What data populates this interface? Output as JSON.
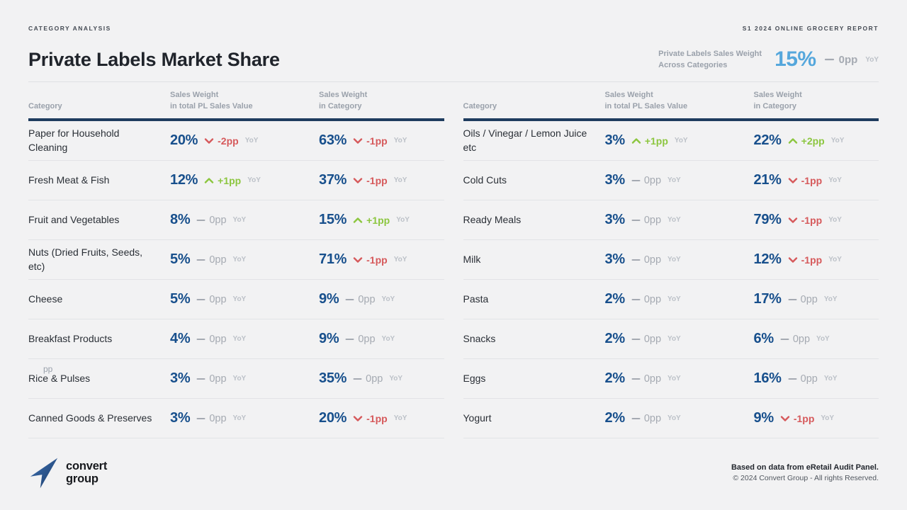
{
  "meta": {
    "left": "CATEGORY ANALYSIS",
    "right": "S1 2024 ONLINE GROCERY REPORT"
  },
  "header": {
    "title": "Private Labels Market Share",
    "kpi": {
      "label_line1": "Private Labels Sales Weight",
      "label_line2": "Across Categories",
      "value": "15%",
      "trend": "flat",
      "change": "0pp"
    }
  },
  "labels": {
    "yoy": "YoY"
  },
  "columns": {
    "category": "Category",
    "col2_line1": "Sales Weight",
    "col2_line2": "in total PL Sales Value",
    "col3_line1": "Sales Weight",
    "col3_line2": "in Category"
  },
  "colors": {
    "accent_blue": "#55a7dc",
    "value_blue": "#174f8c",
    "positive": "#8cc63f",
    "negative": "#d6595b",
    "neutral": "#a5aab2",
    "navy_rule": "#1e3c5e"
  },
  "tables": [
    {
      "rows": [
        {
          "category": "Paper for Household Cleaning",
          "pl": {
            "value": "20%",
            "trend": "down",
            "change": "-2pp"
          },
          "cat": {
            "value": "63%",
            "trend": "down",
            "change": "-1pp"
          }
        },
        {
          "category": "Fresh Meat & Fish",
          "pl": {
            "value": "12%",
            "trend": "up",
            "change": "+1pp"
          },
          "cat": {
            "value": "37%",
            "trend": "down",
            "change": "-1pp"
          }
        },
        {
          "category": "Fruit and Vegetables",
          "pl": {
            "value": "8%",
            "trend": "flat",
            "change": "0pp"
          },
          "cat": {
            "value": "15%",
            "trend": "up",
            "change": "+1pp"
          }
        },
        {
          "category": "Nuts (Dried Fruits, Seeds, etc)",
          "pl": {
            "value": "5%",
            "trend": "flat",
            "change": "0pp"
          },
          "cat": {
            "value": "71%",
            "trend": "down",
            "change": "-1pp"
          }
        },
        {
          "category": "Cheese",
          "pl": {
            "value": "5%",
            "trend": "flat",
            "change": "0pp"
          },
          "cat": {
            "value": "9%",
            "trend": "flat",
            "change": "0pp"
          }
        },
        {
          "category": "Breakfast Products",
          "pl": {
            "value": "4%",
            "trend": "flat",
            "change": "0pp"
          },
          "cat": {
            "value": "9%",
            "trend": "flat",
            "change": "0pp"
          }
        },
        {
          "category": "Rice & Pulses",
          "superscript": "pp",
          "pl": {
            "value": "3%",
            "trend": "flat",
            "change": "0pp"
          },
          "cat": {
            "value": "35%",
            "trend": "flat",
            "change": "0pp"
          }
        },
        {
          "category": "Canned Goods & Preserves",
          "pl": {
            "value": "3%",
            "trend": "flat",
            "change": "0pp"
          },
          "cat": {
            "value": "20%",
            "trend": "down",
            "change": "-1pp"
          }
        }
      ]
    },
    {
      "rows": [
        {
          "category": "Oils / Vinegar / Lemon Juice etc",
          "pl": {
            "value": "3%",
            "trend": "up",
            "change": "+1pp"
          },
          "cat": {
            "value": "22%",
            "trend": "up",
            "change": "+2pp"
          }
        },
        {
          "category": "Cold Cuts",
          "pl": {
            "value": "3%",
            "trend": "flat",
            "change": "0pp"
          },
          "cat": {
            "value": "21%",
            "trend": "down",
            "change": "-1pp"
          }
        },
        {
          "category": "Ready Meals",
          "pl": {
            "value": "3%",
            "trend": "flat",
            "change": "0pp"
          },
          "cat": {
            "value": "79%",
            "trend": "down",
            "change": "-1pp"
          }
        },
        {
          "category": "Milk",
          "pl": {
            "value": "3%",
            "trend": "flat",
            "change": "0pp"
          },
          "cat": {
            "value": "12%",
            "trend": "down",
            "change": "-1pp"
          }
        },
        {
          "category": "Pasta",
          "pl": {
            "value": "2%",
            "trend": "flat",
            "change": "0pp"
          },
          "cat": {
            "value": "17%",
            "trend": "flat",
            "change": "0pp"
          }
        },
        {
          "category": "Snacks",
          "pl": {
            "value": "2%",
            "trend": "flat",
            "change": "0pp"
          },
          "cat": {
            "value": "6%",
            "trend": "flat",
            "change": "0pp"
          }
        },
        {
          "category": "Eggs",
          "pl": {
            "value": "2%",
            "trend": "flat",
            "change": "0pp"
          },
          "cat": {
            "value": "16%",
            "trend": "flat",
            "change": "0pp"
          }
        },
        {
          "category": "Yogurt",
          "pl": {
            "value": "2%",
            "trend": "flat",
            "change": "0pp"
          },
          "cat": {
            "value": "9%",
            "trend": "down",
            "change": "-1pp"
          }
        }
      ]
    }
  ],
  "footer": {
    "logo_line1": "convert",
    "logo_line2": "group",
    "note_bold": "Based on data from eRetail Audit Panel.",
    "note": "© 2024 Convert Group - All rights Reserved."
  }
}
